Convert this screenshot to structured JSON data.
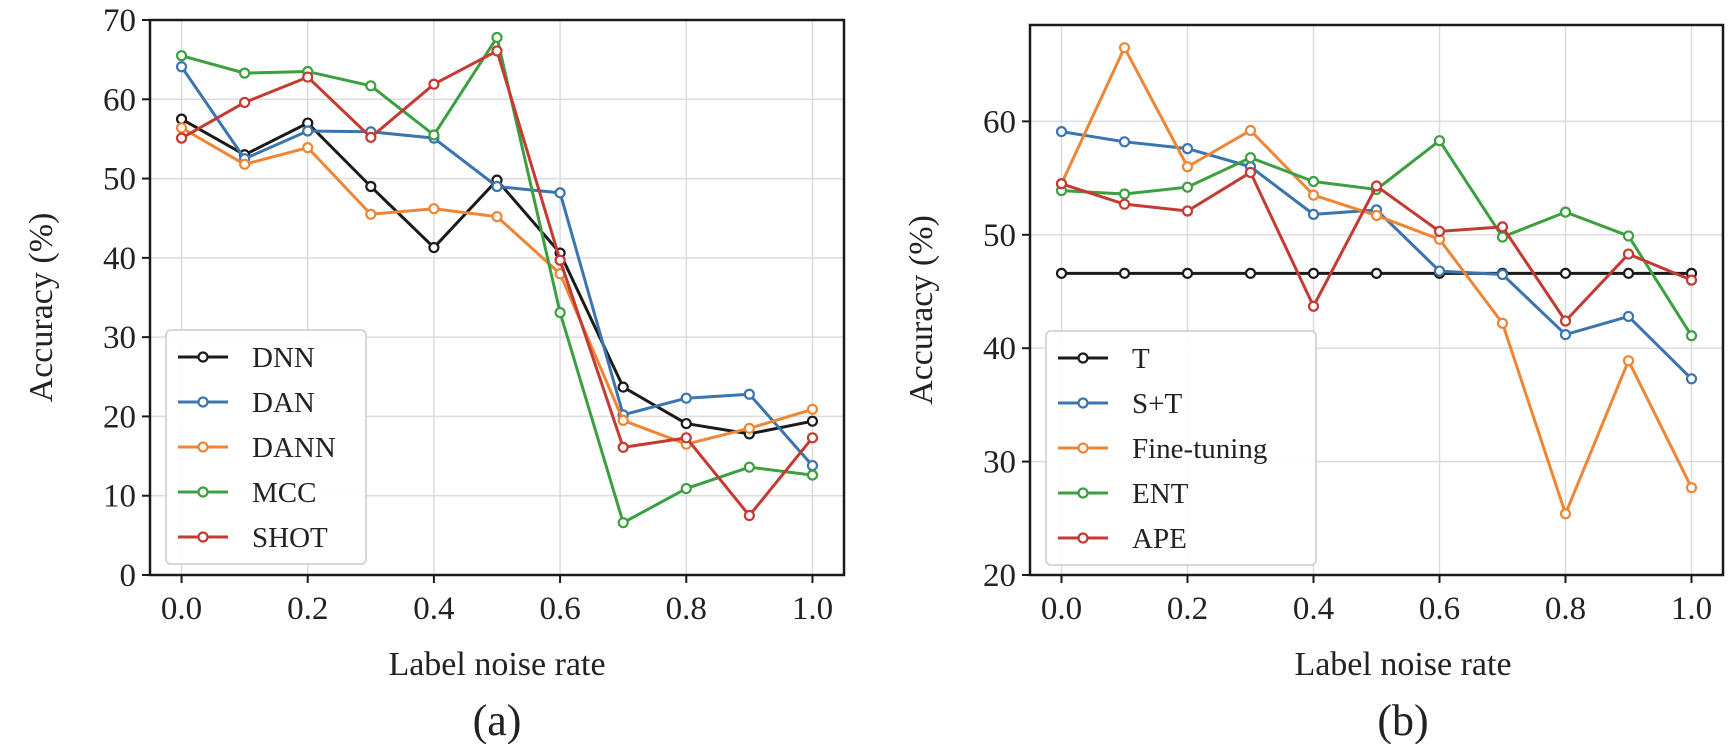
{
  "chart_data": [
    {
      "type": "line",
      "panel_label": "(a)",
      "xlabel": "Label noise rate",
      "ylabel": "Accuracy (%)",
      "xlim": [
        -0.05,
        1.05
      ],
      "ylim": [
        0,
        70
      ],
      "xticks": [
        0.0,
        0.2,
        0.4,
        0.6,
        0.8,
        1.0
      ],
      "xtick_labels": [
        "0.0",
        "0.2",
        "0.4",
        "0.6",
        "0.8",
        "1.0"
      ],
      "yticks": [
        0,
        10,
        20,
        30,
        40,
        50,
        60,
        70
      ],
      "ytick_labels": [
        "0",
        "10",
        "20",
        "30",
        "40",
        "50",
        "60",
        "70"
      ],
      "grid": true,
      "legend_position": "lower-left",
      "x": [
        0.0,
        0.1,
        0.2,
        0.3,
        0.4,
        0.5,
        0.6,
        0.7,
        0.8,
        0.9,
        1.0
      ],
      "series": [
        {
          "name": "DNN",
          "color": "#1a1a1a",
          "values": [
            57.5,
            53.0,
            57.0,
            49.0,
            41.3,
            49.8,
            40.6,
            23.7,
            19.1,
            17.8,
            19.4
          ]
        },
        {
          "name": "DAN",
          "color": "#3b75af",
          "values": [
            64.1,
            52.5,
            56.0,
            55.9,
            55.1,
            49.0,
            48.2,
            20.2,
            22.3,
            22.8,
            13.8
          ]
        },
        {
          "name": "DANN",
          "color": "#ef8636",
          "values": [
            56.4,
            51.8,
            53.9,
            45.5,
            46.2,
            45.2,
            38.0,
            19.5,
            16.5,
            18.5,
            20.9
          ]
        },
        {
          "name": "MCC",
          "color": "#3c9f40",
          "values": [
            65.5,
            63.3,
            63.5,
            61.7,
            55.5,
            67.8,
            33.1,
            6.6,
            10.9,
            13.6,
            12.6
          ]
        },
        {
          "name": "SHOT",
          "color": "#c53a32",
          "values": [
            55.1,
            59.6,
            62.8,
            55.2,
            61.9,
            66.1,
            39.7,
            16.1,
            17.3,
            7.5,
            17.3
          ]
        }
      ]
    },
    {
      "type": "line",
      "panel_label": "(b)",
      "xlabel": "Label noise rate",
      "ylabel": "Accuracy (%)",
      "xlim": [
        -0.05,
        1.05
      ],
      "ylim": [
        20,
        68.5
      ],
      "xticks": [
        0.0,
        0.2,
        0.4,
        0.6,
        0.8,
        1.0
      ],
      "xtick_labels": [
        "0.0",
        "0.2",
        "0.4",
        "0.6",
        "0.8",
        "1.0"
      ],
      "yticks": [
        20,
        30,
        40,
        50,
        60
      ],
      "ytick_labels": [
        "20",
        "30",
        "40",
        "50",
        "60"
      ],
      "grid": true,
      "legend_position": "lower-left",
      "x": [
        0.0,
        0.1,
        0.2,
        0.3,
        0.4,
        0.5,
        0.6,
        0.7,
        0.8,
        0.9,
        1.0
      ],
      "series": [
        {
          "name": "T",
          "color": "#1a1a1a",
          "values": [
            46.6,
            46.6,
            46.6,
            46.6,
            46.6,
            46.6,
            46.6,
            46.6,
            46.6,
            46.6,
            46.6
          ]
        },
        {
          "name": "S+T",
          "color": "#3b75af",
          "values": [
            59.1,
            58.2,
            57.6,
            56.0,
            51.8,
            52.2,
            46.8,
            46.5,
            41.2,
            42.8,
            37.3
          ]
        },
        {
          "name": "Fine-tuning",
          "color": "#ef8636",
          "values": [
            54.5,
            66.5,
            56.0,
            59.2,
            53.5,
            51.7,
            49.6,
            42.2,
            25.4,
            38.9,
            27.7
          ]
        },
        {
          "name": "ENT",
          "color": "#3c9f40",
          "values": [
            53.9,
            53.6,
            54.2,
            56.8,
            54.7,
            54.0,
            58.3,
            49.8,
            52.0,
            49.9,
            41.1
          ]
        },
        {
          "name": "APE",
          "color": "#c53a32",
          "values": [
            54.5,
            52.7,
            52.1,
            55.5,
            43.7,
            54.3,
            50.3,
            50.7,
            42.4,
            48.3,
            46.0
          ]
        }
      ]
    }
  ]
}
